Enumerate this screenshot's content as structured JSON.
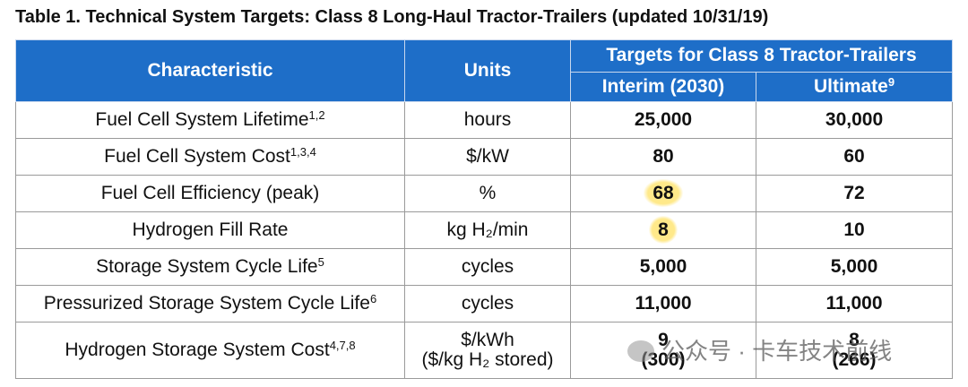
{
  "title": "Table 1. Technical System Targets: Class 8 Long-Haul Tractor-Trailers (updated 10/31/19)",
  "table": {
    "header": {
      "characteristic": "Characteristic",
      "units": "Units",
      "targets": "Targets for Class 8 Tractor-Trailers",
      "interim": "Interim (2030)",
      "ultimate": "Ultimate",
      "ultimate_sup": "9"
    },
    "rows": [
      {
        "characteristic": "Fuel Cell System Lifetime",
        "sup": "1,2",
        "units": [
          "hours"
        ],
        "interim": [
          "25,000"
        ],
        "ultimate": [
          "30,000"
        ]
      },
      {
        "characteristic": "Fuel Cell System Cost",
        "sup": "1,3,4",
        "units": [
          "$/kW"
        ],
        "interim": [
          "80"
        ],
        "ultimate": [
          "60"
        ]
      },
      {
        "characteristic": "Fuel Cell Efficiency (peak)",
        "units": [
          "%"
        ],
        "interim": [
          "68"
        ],
        "ultimate": [
          "72"
        ],
        "highlight": true
      },
      {
        "characteristic": "Hydrogen Fill Rate",
        "units": [
          "kg H₂/min"
        ],
        "interim": [
          "8"
        ],
        "ultimate": [
          "10"
        ],
        "highlight": true
      },
      {
        "characteristic": "Storage System Cycle Life",
        "sup": "5",
        "units": [
          "cycles"
        ],
        "interim": [
          "5,000"
        ],
        "ultimate": [
          "5,000"
        ]
      },
      {
        "characteristic": "Pressurized Storage System Cycle Life",
        "sup": "6",
        "units": [
          "cycles"
        ],
        "interim": [
          "11,000"
        ],
        "ultimate": [
          "11,000"
        ]
      },
      {
        "characteristic": "Hydrogen Storage System Cost",
        "sup": "4,7,8",
        "units": [
          "$/kWh",
          "($/kg H₂ stored)"
        ],
        "interim": [
          "9",
          "(300)"
        ],
        "ultimate": [
          "8",
          "(266)"
        ]
      }
    ]
  },
  "watermark": "公众号 · 卡车技术前线"
}
